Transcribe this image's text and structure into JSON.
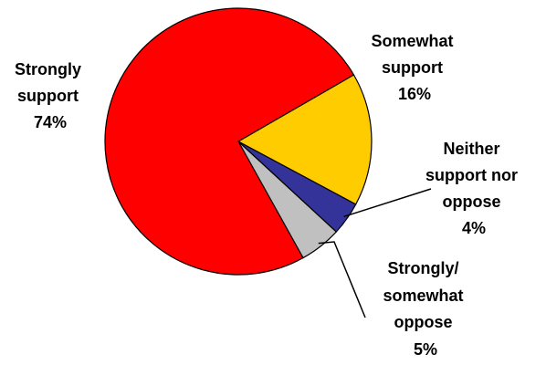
{
  "chart_data": {
    "type": "pie",
    "slices": [
      {
        "label_lines": [
          "Strongly",
          "support"
        ],
        "value_text": "74%",
        "value": 74,
        "color": "#ff0000"
      },
      {
        "label_lines": [
          "Somewhat",
          "support"
        ],
        "value_text": "16%",
        "value": 16,
        "color": "#ffcc00"
      },
      {
        "label_lines": [
          "Neither",
          "support nor",
          "oppose"
        ],
        "value_text": "4%",
        "value": 4,
        "color": "#333399"
      },
      {
        "label_lines": [
          "Strongly/",
          "somewhat",
          "oppose"
        ],
        "value_text": "5%",
        "value": 5,
        "color": "#c0c0c0"
      }
    ],
    "legend": "none",
    "start_angle_deg": 30,
    "direction": "clockwise"
  }
}
